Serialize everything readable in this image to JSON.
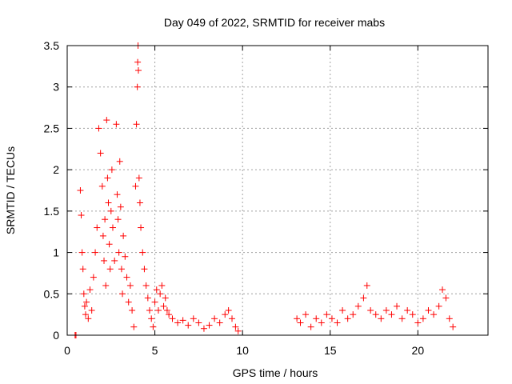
{
  "chart_data": {
    "type": "scatter",
    "title": "Day 049 of 2022, SRMTID for receiver mabs",
    "xlabel": "GPS time / hours",
    "ylabel": "SRMTID / TECUs",
    "xlim": [
      0,
      24
    ],
    "ylim": [
      0,
      3.5
    ],
    "xticks": [
      0,
      5,
      10,
      15,
      20
    ],
    "xtick_labels": [
      "0",
      "5",
      "10",
      "15",
      "20"
    ],
    "yticks": [
      0,
      0.5,
      1,
      1.5,
      2,
      2.5,
      3,
      3.5
    ],
    "ytick_labels": [
      "0",
      "0.5",
      "1",
      "1.5",
      "2",
      "2.5",
      "3",
      "3.5"
    ],
    "grid": true,
    "marker": "+",
    "series": [
      {
        "name": "SRMTID",
        "color": "#ff0000",
        "x": [
          0.45,
          0.5,
          0.75,
          0.8,
          0.85,
          0.9,
          0.95,
          1.0,
          1.05,
          1.1,
          1.2,
          1.3,
          1.4,
          1.5,
          1.6,
          1.7,
          1.8,
          1.9,
          2.0,
          2.05,
          2.1,
          2.15,
          2.2,
          2.25,
          2.3,
          2.35,
          2.4,
          2.45,
          2.5,
          2.55,
          2.6,
          2.7,
          2.8,
          2.85,
          2.9,
          2.95,
          3.0,
          3.05,
          3.1,
          3.15,
          3.2,
          3.3,
          3.4,
          3.5,
          3.6,
          3.7,
          3.8,
          3.9,
          3.95,
          4.0,
          4.02,
          4.04,
          4.06,
          4.1,
          4.15,
          4.2,
          4.3,
          4.4,
          4.5,
          4.6,
          4.7,
          4.8,
          4.9,
          5.0,
          5.1,
          5.2,
          5.3,
          5.4,
          5.5,
          5.6,
          5.7,
          5.8,
          6.0,
          6.3,
          6.6,
          6.9,
          7.2,
          7.5,
          7.8,
          8.1,
          8.4,
          8.7,
          9.0,
          9.2,
          9.4,
          9.6,
          9.75,
          13.1,
          13.3,
          13.6,
          13.9,
          14.2,
          14.5,
          14.8,
          15.1,
          15.4,
          15.7,
          16.0,
          16.3,
          16.6,
          16.9,
          17.1,
          17.3,
          17.6,
          17.9,
          18.2,
          18.5,
          18.8,
          19.1,
          19.4,
          19.7,
          20.0,
          20.3,
          20.6,
          20.9,
          21.2,
          21.4,
          21.6,
          21.8,
          22.0
        ],
        "y": [
          0.0,
          0.0,
          1.75,
          1.45,
          1.0,
          0.8,
          0.5,
          0.35,
          0.25,
          0.4,
          0.2,
          0.55,
          0.3,
          0.7,
          1.0,
          1.3,
          2.5,
          2.2,
          1.8,
          1.2,
          0.9,
          1.4,
          0.6,
          2.6,
          1.9,
          1.6,
          1.1,
          0.8,
          1.5,
          2.0,
          1.3,
          0.9,
          2.55,
          1.7,
          1.4,
          1.0,
          2.1,
          1.55,
          0.8,
          0.5,
          1.2,
          0.95,
          0.7,
          0.4,
          0.6,
          0.3,
          0.1,
          1.8,
          2.55,
          3.0,
          3.3,
          3.5,
          3.2,
          1.9,
          1.6,
          1.3,
          1.0,
          0.8,
          0.6,
          0.45,
          0.3,
          0.2,
          0.1,
          0.4,
          0.55,
          0.3,
          0.5,
          0.6,
          0.35,
          0.45,
          0.3,
          0.25,
          0.2,
          0.15,
          0.18,
          0.12,
          0.2,
          0.15,
          0.08,
          0.12,
          0.2,
          0.15,
          0.25,
          0.3,
          0.2,
          0.1,
          0.05,
          0.2,
          0.15,
          0.25,
          0.1,
          0.2,
          0.15,
          0.25,
          0.2,
          0.15,
          0.3,
          0.2,
          0.25,
          0.35,
          0.45,
          0.6,
          0.3,
          0.25,
          0.2,
          0.3,
          0.25,
          0.35,
          0.2,
          0.3,
          0.25,
          0.15,
          0.2,
          0.3,
          0.25,
          0.35,
          0.55,
          0.45,
          0.2,
          0.1
        ]
      }
    ]
  }
}
